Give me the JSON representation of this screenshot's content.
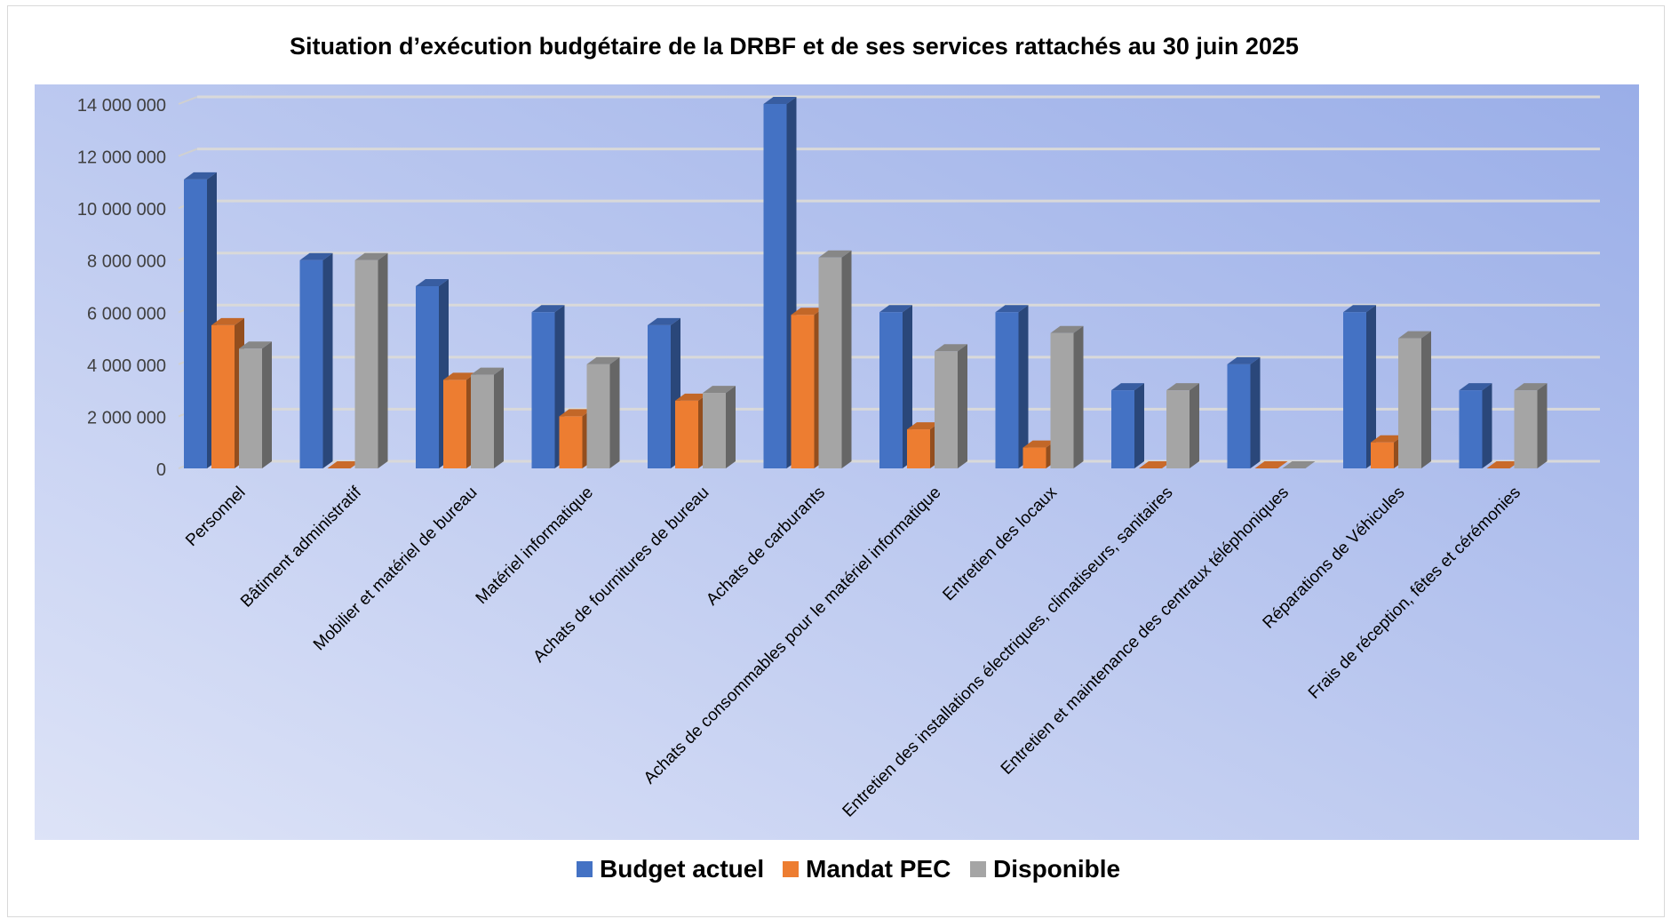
{
  "chart_data": {
    "type": "bar",
    "title": "Situation d’exécution budgétaire de la DRBF et de ses services rattachés au 30 juin 2025",
    "categories": [
      "Personnel",
      "Bâtiment administratif",
      "Mobilier et matériel de bureau",
      "Matériel informatique",
      "Achats de fournitures de bureau",
      "Achats de carburants",
      "Achats de consommables pour le matériel informatique",
      "Entretien des locaux",
      "Entretien des installations électriques, climatiseurs, sanitaires",
      "Entretien et maintenance des centraux téléphoniques",
      "Réparations de Véhicules",
      "Frais de réception, fêtes et cérémonies"
    ],
    "series": [
      {
        "name": "Budget actuel",
        "color": "#4472C4",
        "values": [
          11100000,
          8000000,
          7000000,
          6000000,
          5500000,
          14000000,
          6000000,
          6000000,
          3000000,
          4000000,
          6000000,
          3000000
        ]
      },
      {
        "name": "Mandat PEC",
        "color": "#ED7D31",
        "values": [
          5500000,
          0,
          3400000,
          2000000,
          2600000,
          5900000,
          1500000,
          800000,
          0,
          0,
          1000000,
          0
        ]
      },
      {
        "name": "Disponible",
        "color": "#A5A5A5",
        "values": [
          4600000,
          8000000,
          3600000,
          4000000,
          2900000,
          8100000,
          4500000,
          5200000,
          3000000,
          0,
          5000000,
          3000000
        ]
      }
    ],
    "yticks": [
      "0",
      "2 000 000",
      "4 000 000",
      "6 000 000",
      "8 000 000",
      "10 000 000",
      "12 000 000",
      "14 000 000"
    ],
    "ylim": [
      0,
      14000000
    ],
    "xlabel": "",
    "ylabel": "",
    "grid": true,
    "legend_position": "bottom",
    "background_gradient": [
      "#dde3f7",
      "#9aaee8"
    ]
  }
}
